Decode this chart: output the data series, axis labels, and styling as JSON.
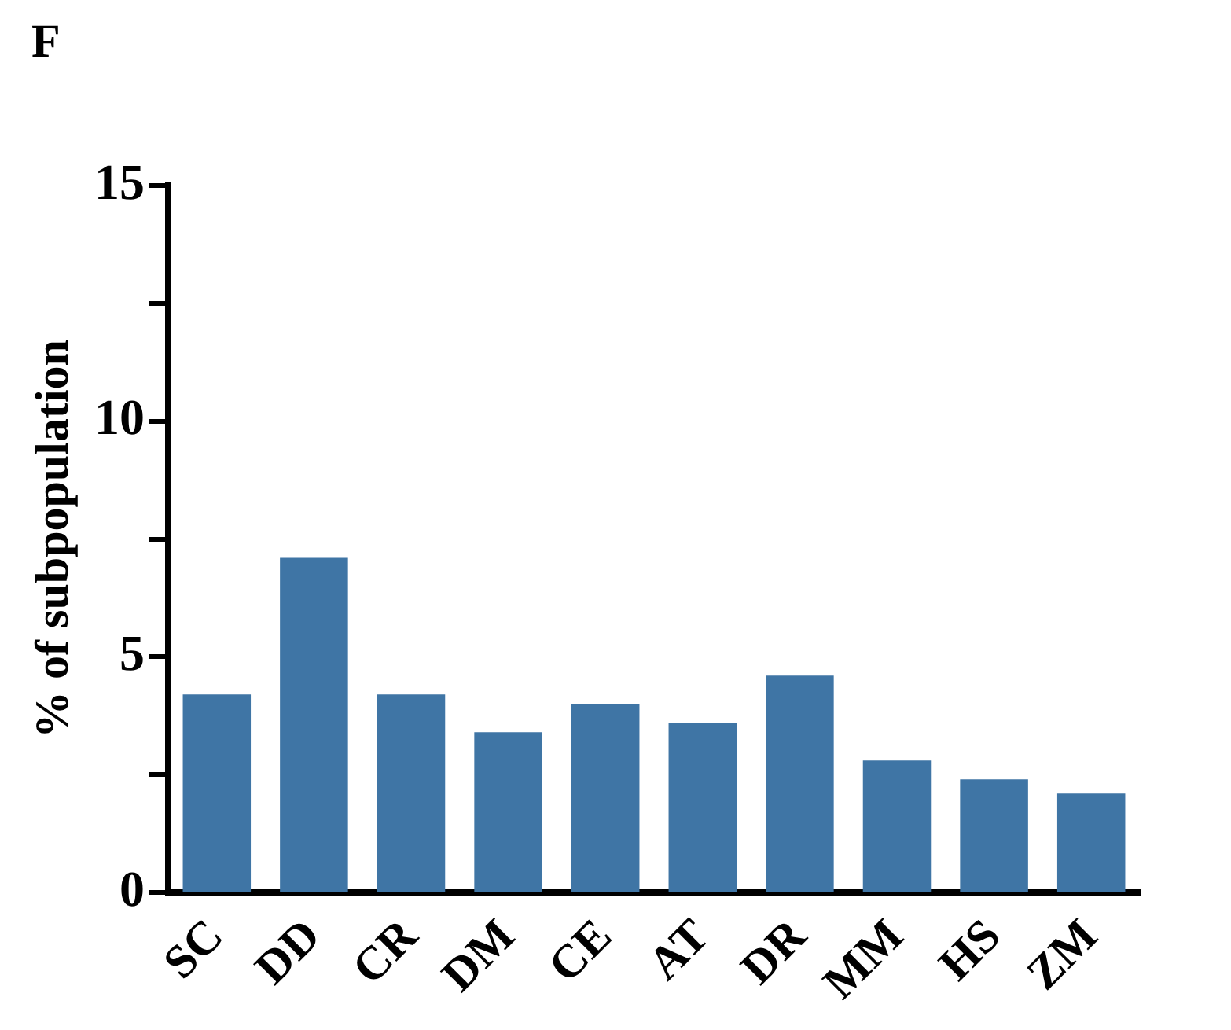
{
  "chart_data": {
    "type": "bar",
    "ylabel": "% of subpopulation",
    "annotations": [
      "F"
    ],
    "categories": [
      "SC",
      "DD",
      "CR",
      "DM",
      "CE",
      "AT",
      "DR",
      "MM",
      "HS",
      "ZM"
    ],
    "values": [
      4.2,
      7.1,
      4.2,
      3.4,
      4.0,
      3.6,
      4.6,
      2.8,
      2.4,
      2.1
    ],
    "color": "#3f75a5",
    "ylim": [
      0,
      15
    ],
    "yticks": [
      0,
      {
        "value": 2.5,
        "label": null
      },
      5,
      {
        "value": 7.5,
        "label": null
      },
      10,
      {
        "value": 12.5,
        "label": null
      },
      15
    ],
    "grid": false,
    "legend": false
  }
}
